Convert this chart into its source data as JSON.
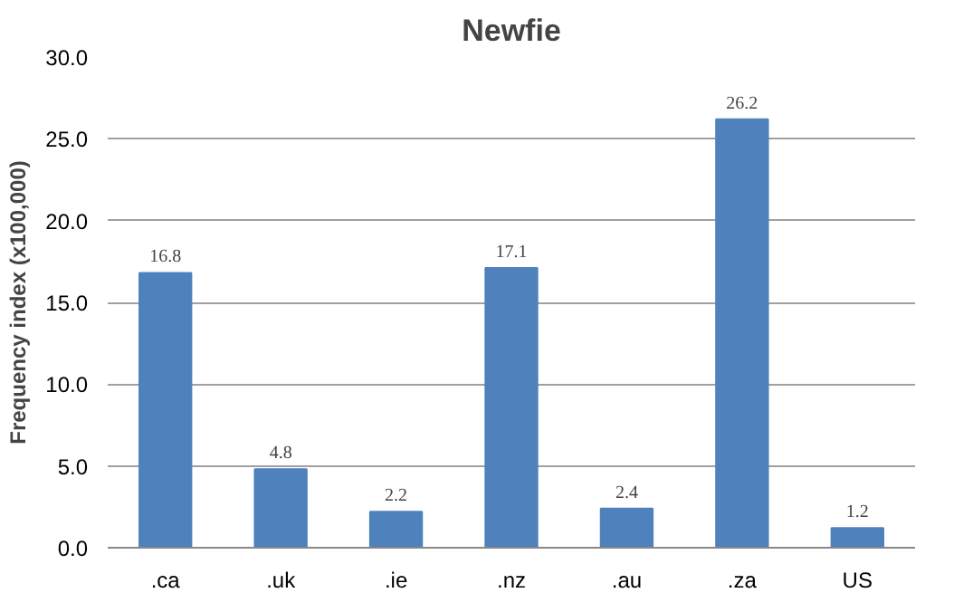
{
  "chart_data": {
    "type": "bar",
    "title": "Newfie",
    "ylabel": "Frequency index (x100,000)",
    "categories": [
      ".ca",
      ".uk",
      ".ie",
      ".nz",
      ".au",
      ".za",
      "US"
    ],
    "values": [
      16.8,
      4.8,
      2.2,
      17.1,
      2.4,
      26.2,
      1.2
    ],
    "color": "#4f81bd",
    "data_labels": true,
    "grid": "y",
    "ylim": [
      0,
      30
    ],
    "yticks": [
      {
        "value": 0,
        "label": "0.0"
      },
      {
        "value": 5,
        "label": "5.0"
      },
      {
        "value": 10,
        "label": "10.0"
      },
      {
        "value": 15,
        "label": "15.0"
      },
      {
        "value": 20,
        "label": "20.0"
      },
      {
        "value": 25,
        "label": "25.0"
      },
      {
        "value": 30,
        "label": "30.0"
      }
    ]
  }
}
